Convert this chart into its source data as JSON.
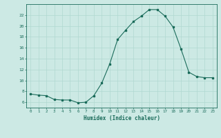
{
  "x": [
    0,
    1,
    2,
    3,
    4,
    5,
    6,
    7,
    8,
    9,
    10,
    11,
    12,
    13,
    14,
    15,
    16,
    17,
    18,
    19,
    20,
    21,
    22,
    23
  ],
  "y": [
    7.5,
    7.3,
    7.2,
    6.5,
    6.4,
    6.4,
    5.9,
    6.0,
    7.2,
    9.5,
    13.0,
    17.5,
    19.2,
    20.8,
    21.8,
    23.0,
    23.0,
    21.8,
    19.8,
    15.8,
    11.5,
    10.7,
    10.5,
    10.5
  ],
  "xlabel": "Humidex (Indice chaleur)",
  "ylim": [
    5,
    24
  ],
  "yticks": [
    6,
    8,
    10,
    12,
    14,
    16,
    18,
    20,
    22
  ],
  "bg_color": "#cce9e4",
  "line_color": "#1a6b5a",
  "grid_color": "#b0d8d0",
  "figsize": [
    3.2,
    2.0
  ],
  "dpi": 100
}
